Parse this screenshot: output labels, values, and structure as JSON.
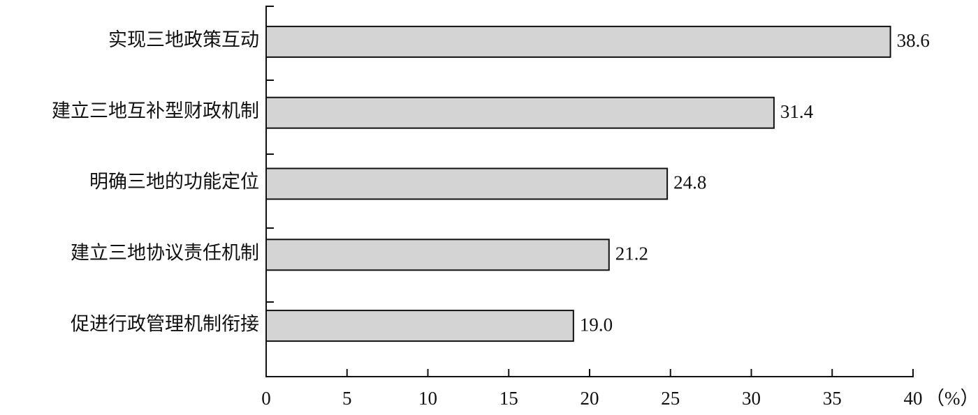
{
  "chart_data": {
    "type": "bar",
    "orientation": "horizontal",
    "categories": [
      "实现三地政策互动",
      "建立三地互补型财政机制",
      "明确三地的功能定位",
      "建立三地协议责任机制",
      "促进行政管理机制衔接"
    ],
    "values": [
      38.6,
      31.4,
      24.8,
      21.2,
      19.0
    ],
    "value_labels": [
      "38.6",
      "31.4",
      "24.8",
      "21.2",
      "19.0"
    ],
    "color": "#d4d4d4",
    "xlim": [
      0,
      40
    ],
    "xticks": [
      0,
      5,
      10,
      15,
      20,
      25,
      30,
      35,
      40
    ],
    "x_unit": "（%）"
  }
}
